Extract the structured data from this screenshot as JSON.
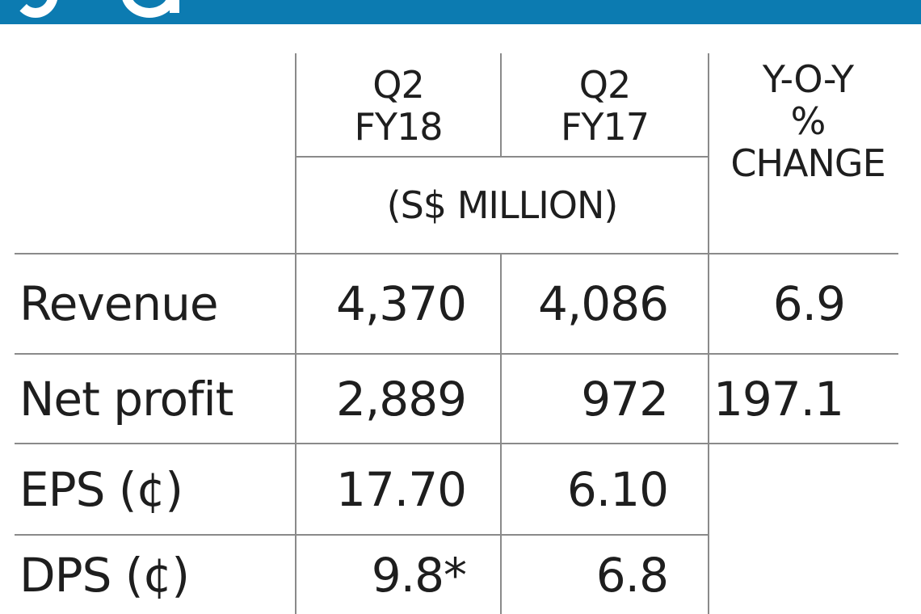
{
  "chart_data": {
    "type": "table",
    "title": "",
    "unit_note": "(S$ MILLION)",
    "columns": [
      {
        "line1": "Q2",
        "line2": "FY18"
      },
      {
        "line1": "Q2",
        "line2": "FY17"
      },
      {
        "line1": "Y-O-Y",
        "line2": "%",
        "line3": "CHANGE"
      }
    ],
    "rows": [
      {
        "label": "Revenue",
        "q2fy18": "4,370",
        "q2fy17": "4,086",
        "yoy": "6.9"
      },
      {
        "label": "Net profit",
        "q2fy18": "2,889",
        "q2fy17": "972",
        "yoy": "197.1"
      },
      {
        "label": "EPS (¢)",
        "q2fy18": "17.70",
        "q2fy17": "6.10",
        "yoy": ""
      },
      {
        "label": "DPS (¢)",
        "q2fy18": "9.8*",
        "q2fy17": "6.8",
        "yoy": ""
      }
    ]
  },
  "colors": {
    "header_band": "#0c7bb1",
    "grid_lines": "#8a8a8a",
    "text": "#1e1e1e",
    "background": "#ffffff"
  }
}
